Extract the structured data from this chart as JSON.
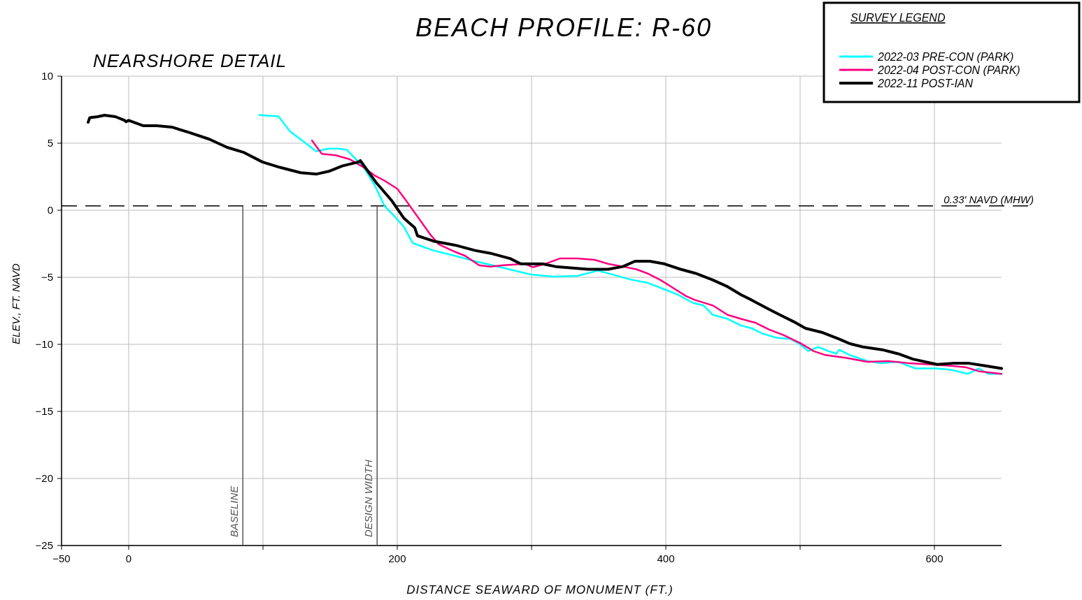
{
  "chart_data": {
    "type": "line",
    "title": "BEACH PROFILE: R-60",
    "subtitle": "NEARSHORE DETAIL",
    "xlabel": "DISTANCE SEAWARD OF MONUMENT (FT.)",
    "ylabel": "ELEV., FT. NAVD",
    "legend_title": "SURVEY LEGEND",
    "legend": "top right",
    "grid": true,
    "line_style": "solid",
    "xlim": [
      -50,
      650
    ],
    "ylim": [
      -25,
      10
    ],
    "xticks": [
      -50,
      0,
      {
        "value": 100,
        "label": null
      },
      200,
      {
        "value": 300,
        "label": null
      },
      400,
      {
        "value": 500,
        "label": null
      },
      600
    ],
    "yticks": [
      -25,
      -20,
      -15,
      -10,
      -5,
      0,
      5,
      10
    ],
    "ref_lines": [
      {
        "axis": "y",
        "value": 0.33,
        "label": "0.33' NAVD (MHW)",
        "line_style": "dashed",
        "color": "#000000"
      },
      {
        "axis": "x",
        "value": 85,
        "label": "BASELINE",
        "color": "#555555"
      },
      {
        "axis": "x",
        "value": 185,
        "label": "DESIGN WIDTH",
        "color": "#555555"
      }
    ],
    "series": [
      {
        "name": "2022-03 PRE-CON (PARK)",
        "color": "#00ffff",
        "x": [
          97,
          111.5,
          120,
          139.6,
          149,
          155.7,
          162.5,
          175,
          183,
          190.6,
          198.4,
          205,
          211.5,
          227,
          243,
          258,
          279,
          300,
          315.6,
          334,
          349.5,
          362.5,
          373,
          386,
          399,
          409,
          420,
          428,
          435,
          446,
          456,
          464,
          472,
          482,
          493,
          500,
          506,
          513.5,
          521,
          527,
          529,
          537,
          550,
          560,
          573,
          586,
          602,
          612.5,
          625,
          633,
          640,
          650
        ],
        "values": [
          7.1,
          7.0,
          5.9,
          4.4,
          4.6,
          4.6,
          4.5,
          3.2,
          1.9,
          0.3,
          -0.5,
          -1.25,
          -2.45,
          -3.0,
          -3.4,
          -3.8,
          -4.3,
          -4.8,
          -4.95,
          -4.9,
          -4.5,
          -4.85,
          -5.15,
          -5.4,
          -5.9,
          -6.3,
          -6.9,
          -7.1,
          -7.8,
          -8.1,
          -8.6,
          -8.8,
          -9.2,
          -9.5,
          -9.6,
          -10.0,
          -10.5,
          -10.2,
          -10.5,
          -10.7,
          -10.4,
          -10.8,
          -11.25,
          -11.4,
          -11.3,
          -11.8,
          -11.8,
          -11.9,
          -12.2,
          -11.8,
          -12.2,
          -12.2
        ]
      },
      {
        "name": "2022-04 POST-CON (PARK)",
        "color": "#ff0080",
        "x": [
          136.5,
          143.8,
          154,
          164.6,
          175,
          183,
          190.6,
          200,
          206,
          216.7,
          224.5,
          231,
          243,
          250.5,
          261,
          269,
          279,
          295,
          301,
          310,
          321,
          334,
          347,
          357,
          368,
          378,
          386,
          396,
          404,
          415,
          422,
          435,
          446,
          456,
          467,
          477,
          487.5,
          500,
          510,
          518.75,
          534,
          550,
          565.6,
          581,
          597,
          612.5,
          623,
          633,
          650
        ],
        "values": [
          5.2,
          4.2,
          4.1,
          3.8,
          3.2,
          2.6,
          2.2,
          1.6,
          0.8,
          -0.7,
          -1.8,
          -2.55,
          -3.1,
          -3.4,
          -4.1,
          -4.2,
          -4.1,
          -4.0,
          -4.25,
          -4.0,
          -3.6,
          -3.6,
          -3.7,
          -4.0,
          -4.2,
          -4.4,
          -4.7,
          -5.2,
          -5.7,
          -6.4,
          -6.7,
          -7.1,
          -7.8,
          -8.1,
          -8.4,
          -8.9,
          -9.3,
          -9.9,
          -10.5,
          -10.8,
          -11.0,
          -11.3,
          -11.25,
          -11.4,
          -11.5,
          -11.6,
          -11.7,
          -12.0,
          -12.2
        ]
      },
      {
        "name": "2022-11 POST-IAN",
        "color": "#000000",
        "x": [
          -30.2,
          -29,
          -23,
          -18,
          -10,
          -3,
          -2,
          0,
          11,
          21,
          32,
          45,
          60,
          73,
          86,
          99.5,
          112.5,
          128,
          140,
          149,
          159,
          171,
          172.5,
          184,
          196,
          205,
          213,
          215,
          227,
          243,
          258,
          269,
          284,
          292,
          308,
          318,
          342,
          357,
          368,
          377,
          388,
          399,
          411,
          422,
          435,
          446,
          456,
          464,
          477,
          487,
          495,
          504,
          516,
          529,
          537,
          547,
          561,
          573,
          584,
          602,
          615,
          625,
          638,
          650
        ],
        "values": [
          6.56,
          6.9,
          6.98,
          7.08,
          6.98,
          6.7,
          6.6,
          6.7,
          6.3,
          6.3,
          6.2,
          5.8,
          5.3,
          4.7,
          4.3,
          3.6,
          3.2,
          2.8,
          2.7,
          2.9,
          3.3,
          3.6,
          3.7,
          2.1,
          0.7,
          -0.6,
          -1.3,
          -1.9,
          -2.3,
          -2.6,
          -3.0,
          -3.2,
          -3.6,
          -4.0,
          -4.0,
          -4.2,
          -4.4,
          -4.4,
          -4.2,
          -3.8,
          -3.8,
          -4.0,
          -4.4,
          -4.7,
          -5.2,
          -5.7,
          -6.3,
          -6.7,
          -7.4,
          -7.9,
          -8.3,
          -8.8,
          -9.1,
          -9.6,
          -9.95,
          -10.2,
          -10.4,
          -10.7,
          -11.1,
          -11.5,
          -11.4,
          -11.4,
          -11.6,
          -11.8
        ]
      }
    ]
  }
}
